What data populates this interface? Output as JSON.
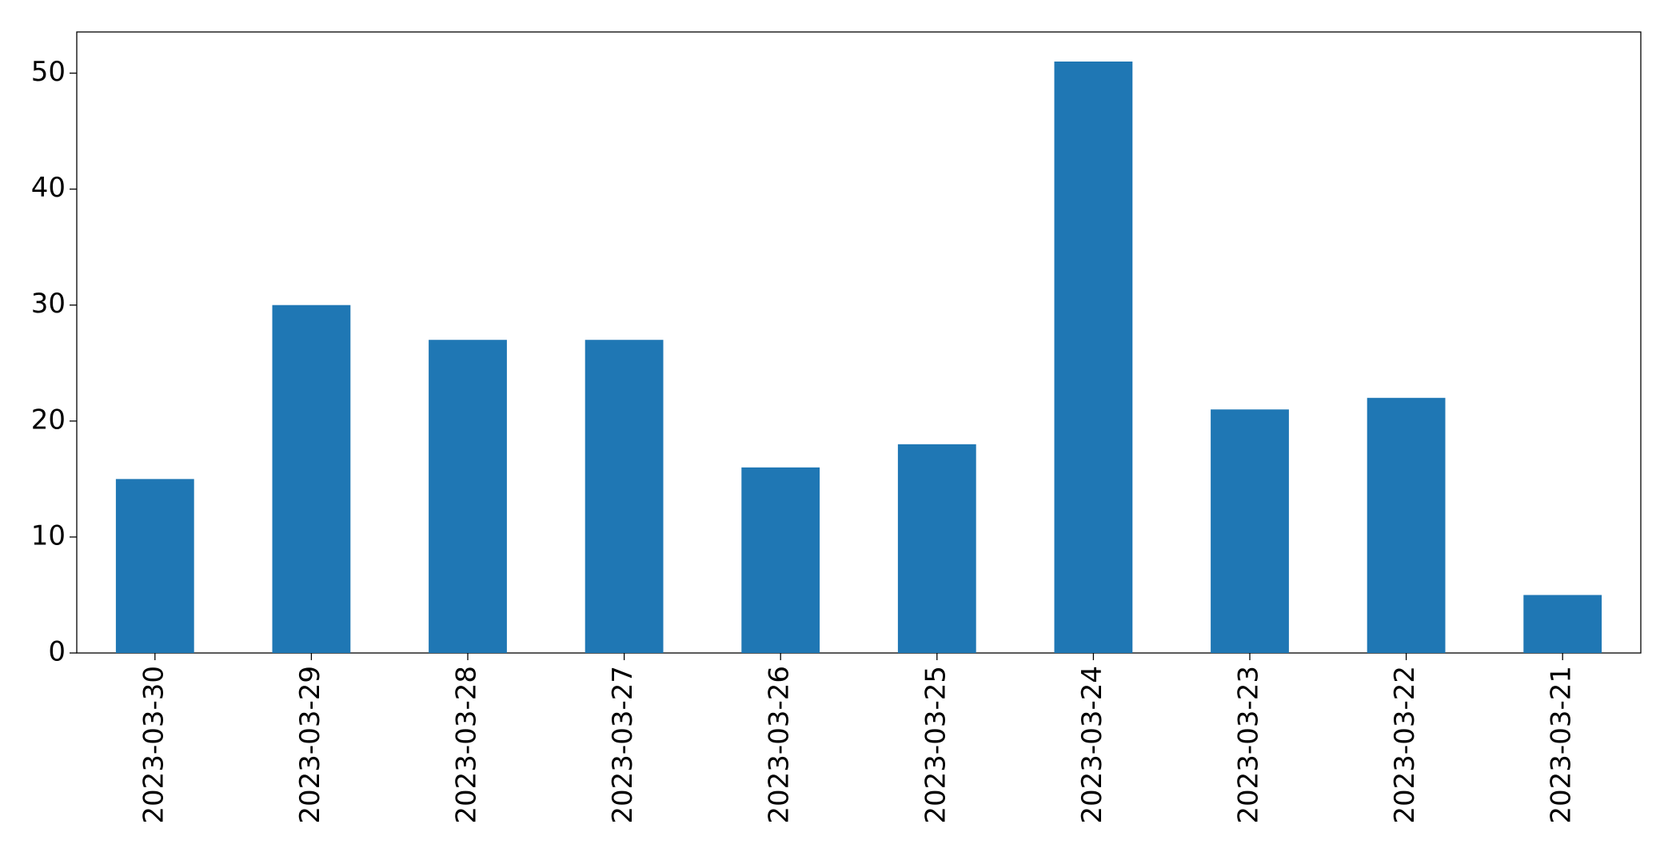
{
  "chart_data": {
    "type": "bar",
    "categories": [
      "2023-03-30",
      "2023-03-29",
      "2023-03-28",
      "2023-03-27",
      "2023-03-26",
      "2023-03-25",
      "2023-03-24",
      "2023-03-23",
      "2023-03-22",
      "2023-03-21"
    ],
    "values": [
      15,
      30,
      27,
      27,
      16,
      18,
      51,
      21,
      22,
      5
    ],
    "color": "#1f77b4",
    "ylim": [
      0,
      53.55
    ],
    "yticks": [
      0,
      10,
      20,
      30,
      40,
      50
    ],
    "grid": false
  }
}
